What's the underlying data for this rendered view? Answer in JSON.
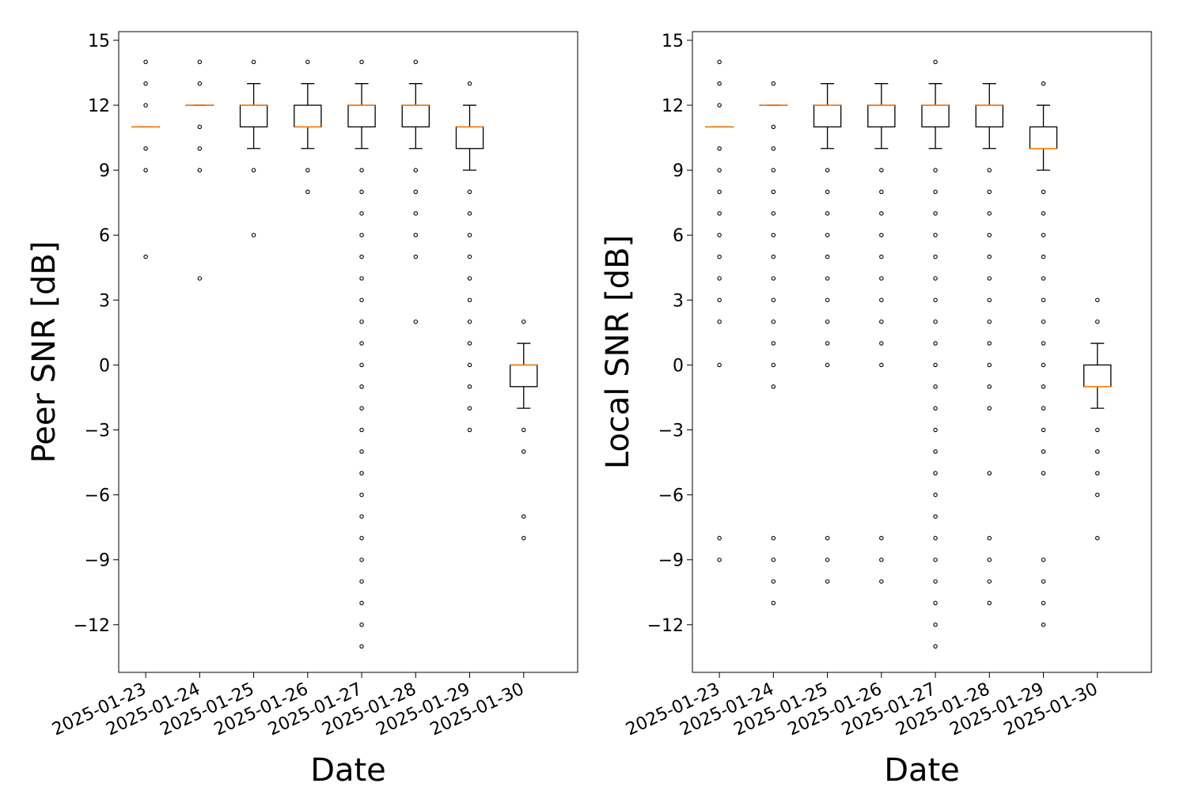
{
  "colors": {
    "box": "#000000",
    "median": "#ff7f0e",
    "flier": "#000000",
    "background": "#ffffff"
  },
  "chart_data": [
    {
      "type": "box",
      "xlabel": "Date",
      "ylabel": "Peer SNR [dB]",
      "ylim": [
        -14.2,
        15.4
      ],
      "yticks": [
        15,
        12,
        9,
        6,
        3,
        0,
        -3,
        -6,
        -9,
        -12
      ],
      "ytick_labels": [
        "15",
        "12",
        "9",
        "6",
        "3",
        "0",
        "−3",
        "−6",
        "−9",
        "−12"
      ],
      "categories": [
        "2025-01-23",
        "2025-01-24",
        "2025-01-25",
        "2025-01-26",
        "2025-01-27",
        "2025-01-28",
        "2025-01-29",
        "2025-01-30"
      ],
      "boxes": [
        {
          "q1": 11,
          "median": 11,
          "q3": 11,
          "whislo": 11,
          "whishi": 11,
          "fliers": [
            14,
            13,
            12,
            10,
            9,
            5
          ]
        },
        {
          "q1": 12,
          "median": 12,
          "q3": 12,
          "whislo": 12,
          "whishi": 12,
          "fliers": [
            14,
            13,
            11,
            10,
            9,
            4
          ]
        },
        {
          "q1": 11,
          "median": 12,
          "q3": 12,
          "whislo": 10,
          "whishi": 13,
          "fliers": [
            14,
            9,
            6
          ]
        },
        {
          "q1": 11,
          "median": 11,
          "q3": 12,
          "whislo": 10,
          "whishi": 13,
          "fliers": [
            14,
            9,
            8
          ]
        },
        {
          "q1": 11,
          "median": 12,
          "q3": 12,
          "whislo": 10,
          "whishi": 13,
          "fliers": [
            14,
            9,
            8,
            7,
            6,
            5,
            4,
            3,
            2,
            1,
            0,
            -1,
            -2,
            -3,
            -4,
            -5,
            -6,
            -7,
            -8,
            -9,
            -10,
            -11,
            -12,
            -13
          ]
        },
        {
          "q1": 11,
          "median": 12,
          "q3": 12,
          "whislo": 10,
          "whishi": 13,
          "fliers": [
            14,
            9,
            8,
            7,
            6,
            5,
            2
          ]
        },
        {
          "q1": 10,
          "median": 11,
          "q3": 11,
          "whislo": 9,
          "whishi": 12,
          "fliers": [
            13,
            8,
            7,
            6,
            5,
            4,
            3,
            2,
            1,
            0,
            -1,
            -2,
            -3
          ]
        },
        {
          "q1": -1,
          "median": 0,
          "q3": 0,
          "whislo": -2,
          "whishi": 1,
          "fliers": [
            2,
            -3,
            -4,
            -7,
            -8
          ]
        }
      ]
    },
    {
      "type": "box",
      "xlabel": "Date",
      "ylabel": "Local SNR [dB]",
      "ylim": [
        -14.2,
        15.4
      ],
      "yticks": [
        15,
        12,
        9,
        6,
        3,
        0,
        -3,
        -6,
        -9,
        -12
      ],
      "ytick_labels": [
        "15",
        "12",
        "9",
        "6",
        "3",
        "0",
        "−3",
        "−6",
        "−9",
        "−12"
      ],
      "categories": [
        "2025-01-23",
        "2025-01-24",
        "2025-01-25",
        "2025-01-26",
        "2025-01-27",
        "2025-01-28",
        "2025-01-29",
        "2025-01-30"
      ],
      "boxes": [
        {
          "q1": 11,
          "median": 11,
          "q3": 11,
          "whislo": 11,
          "whishi": 11,
          "fliers": [
            14,
            13,
            12,
            10,
            9,
            8,
            7,
            6,
            5,
            4,
            3,
            2,
            0,
            -8,
            -9
          ]
        },
        {
          "q1": 12,
          "median": 12,
          "q3": 12,
          "whislo": 12,
          "whishi": 12,
          "fliers": [
            13,
            11,
            10,
            9,
            8,
            7,
            6,
            5,
            4,
            3,
            2,
            1,
            0,
            -1,
            -8,
            -9,
            -10,
            -11
          ]
        },
        {
          "q1": 11,
          "median": 12,
          "q3": 12,
          "whislo": 10,
          "whishi": 13,
          "fliers": [
            9,
            8,
            7,
            6,
            5,
            4,
            3,
            2,
            1,
            0,
            -8,
            -9,
            -10
          ]
        },
        {
          "q1": 11,
          "median": 12,
          "q3": 12,
          "whislo": 10,
          "whishi": 13,
          "fliers": [
            9,
            8,
            7,
            6,
            5,
            4,
            3,
            2,
            1,
            0,
            -8,
            -9,
            -10
          ]
        },
        {
          "q1": 11,
          "median": 12,
          "q3": 12,
          "whislo": 10,
          "whishi": 13,
          "fliers": [
            14,
            9,
            8,
            7,
            6,
            5,
            4,
            3,
            2,
            1,
            0,
            -1,
            -2,
            -3,
            -4,
            -5,
            -6,
            -7,
            -8,
            -9,
            -10,
            -11,
            -12,
            -13
          ]
        },
        {
          "q1": 11,
          "median": 12,
          "q3": 12,
          "whislo": 10,
          "whishi": 13,
          "fliers": [
            9,
            8,
            7,
            6,
            5,
            4,
            3,
            2,
            1,
            0,
            -1,
            -2,
            -5,
            -8,
            -9,
            -10,
            -11
          ]
        },
        {
          "q1": 10,
          "median": 10,
          "q3": 11,
          "whislo": 9,
          "whishi": 12,
          "fliers": [
            13,
            8,
            7,
            6,
            5,
            4,
            3,
            2,
            1,
            0,
            -1,
            -2,
            -3,
            -4,
            -5,
            -9,
            -10,
            -11,
            -12
          ]
        },
        {
          "q1": -1,
          "median": -1,
          "q3": 0,
          "whislo": -2,
          "whishi": 1,
          "fliers": [
            3,
            2,
            -3,
            -4,
            -5,
            -6,
            -8
          ]
        }
      ]
    }
  ]
}
